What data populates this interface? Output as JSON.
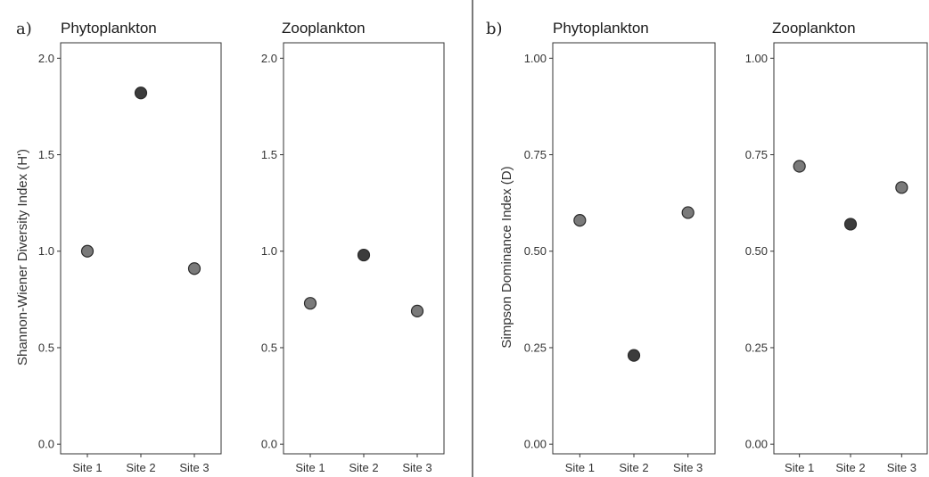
{
  "colors": {
    "point_default": "#7a7a7a",
    "point_highlight": "#3c3c3c"
  },
  "chart_data": [
    {
      "type": "scatter",
      "panel": "a)",
      "title": "Phytoplankton",
      "ylabel": "Shannon-Wiener Diversity Index (H')",
      "categories": [
        "Site 1",
        "Site 2",
        "Site 3"
      ],
      "values": [
        1.0,
        1.82,
        0.91
      ],
      "highlight_index": 1,
      "ylim": [
        -0.05,
        2.08
      ],
      "yticks": [
        "0.0",
        "0.5",
        "1.0",
        "1.5",
        "2.0"
      ],
      "ytick_values": [
        0.0,
        0.5,
        1.0,
        1.5,
        2.0
      ],
      "grid": false
    },
    {
      "type": "scatter",
      "title": "Zooplankton",
      "categories": [
        "Site 1",
        "Site 2",
        "Site 3"
      ],
      "values": [
        0.73,
        0.98,
        0.69
      ],
      "highlight_index": 1,
      "ylim": [
        -0.05,
        2.08
      ],
      "yticks": [
        "0.0",
        "0.5",
        "1.0",
        "1.5",
        "2.0"
      ],
      "ytick_values": [
        0.0,
        0.5,
        1.0,
        1.5,
        2.0
      ],
      "grid": false
    },
    {
      "type": "scatter",
      "panel": "b)",
      "title": "Phytoplankton",
      "ylabel": "Simpson Dominance Index (D)",
      "categories": [
        "Site 1",
        "Site 2",
        "Site 3"
      ],
      "values": [
        0.58,
        0.23,
        0.6
      ],
      "highlight_index": 1,
      "ylim": [
        -0.025,
        1.04
      ],
      "yticks": [
        "0.00",
        "0.25",
        "0.50",
        "0.75",
        "1.00"
      ],
      "ytick_values": [
        0.0,
        0.25,
        0.5,
        0.75,
        1.0
      ],
      "grid": false
    },
    {
      "type": "scatter",
      "title": "Zooplankton",
      "categories": [
        "Site 1",
        "Site 2",
        "Site 3"
      ],
      "values": [
        0.72,
        0.57,
        0.665
      ],
      "highlight_index": 1,
      "ylim": [
        -0.025,
        1.04
      ],
      "yticks": [
        "0.00",
        "0.25",
        "0.50",
        "0.75",
        "1.00"
      ],
      "ytick_values": [
        0.0,
        0.25,
        0.5,
        0.75,
        1.0
      ],
      "grid": false
    }
  ]
}
